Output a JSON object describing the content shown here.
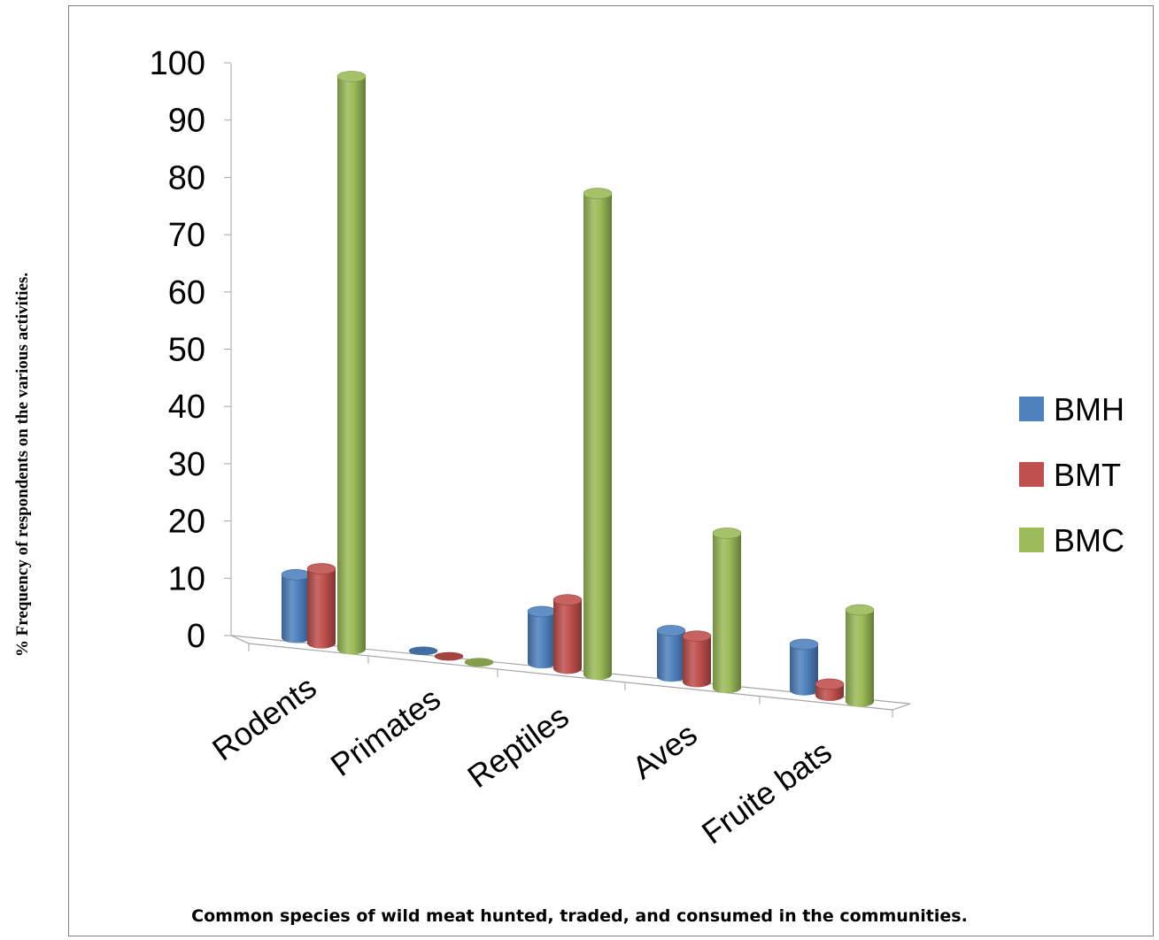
{
  "chart_data": {
    "type": "bar",
    "style": "3d-cylinder",
    "title": "",
    "xlabel": "Common species of wild meat hunted, traded, and consumed in the communities.",
    "ylabel": "%  Frequency of respondents on the various activities.",
    "categories": [
      "Rodents",
      "Primates",
      "Reptiles",
      "Aves",
      "Fruite bats"
    ],
    "series": [
      {
        "name": "BMH",
        "color": "#4F81BD",
        "values": [
          11,
          0,
          9,
          8,
          8
        ]
      },
      {
        "name": "BMT",
        "color": "#C0504D",
        "values": [
          13,
          0,
          12,
          8,
          2
        ]
      },
      {
        "name": "BMC",
        "color": "#9BBB59",
        "values": [
          100,
          0,
          84,
          27,
          16
        ]
      }
    ],
    "yticks": [
      "0",
      "10",
      "20",
      "30",
      "40",
      "50",
      "60",
      "70",
      "80",
      "90",
      "100"
    ],
    "ylim": [
      0,
      100
    ],
    "grid": false,
    "legend_position": "right"
  }
}
